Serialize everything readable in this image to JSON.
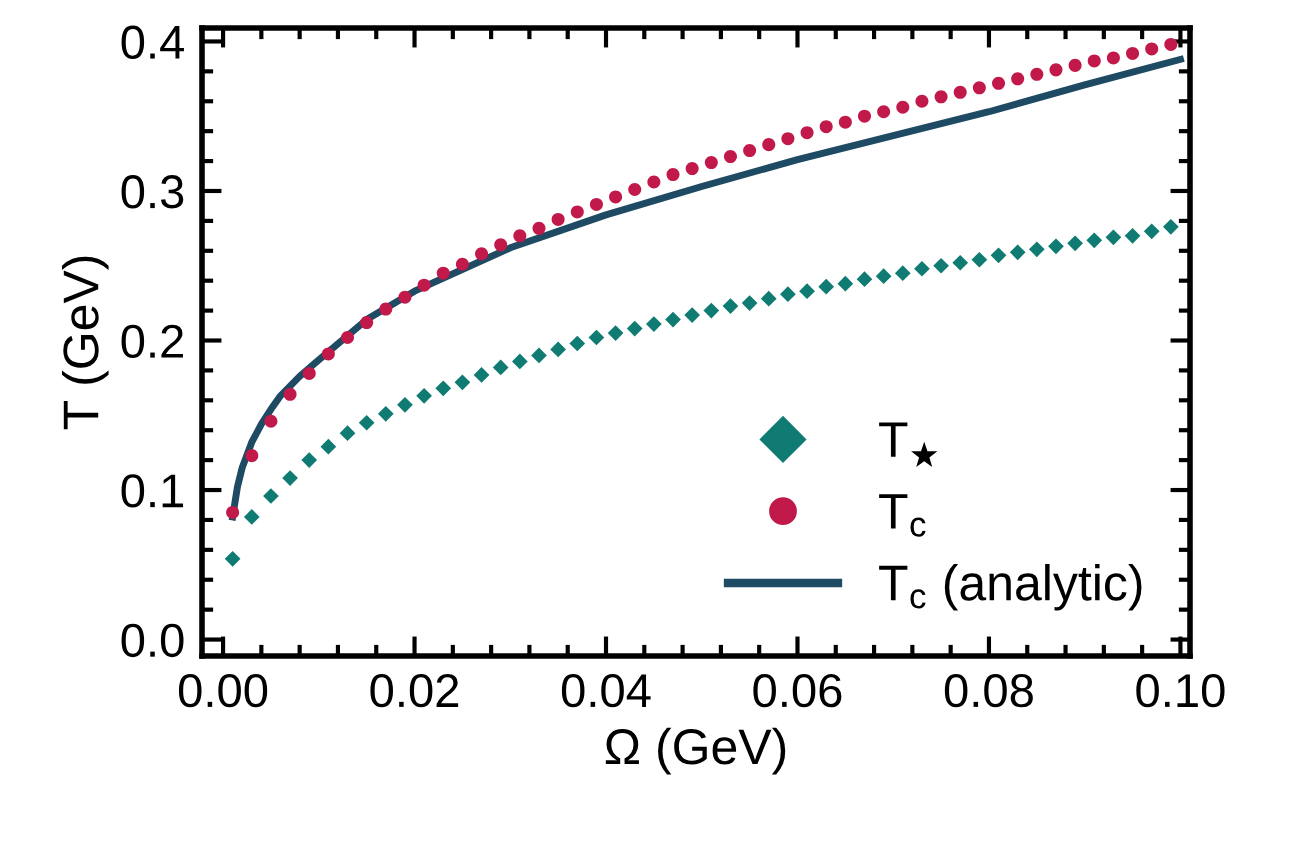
{
  "chart_data": {
    "type": "scatter",
    "xlabel": "Ω (GeV)",
    "ylabel": "T (GeV)",
    "xlim": [
      -0.0022,
      0.101
    ],
    "ylim": [
      -0.011,
      0.409
    ],
    "xticks": [
      {
        "value": 0,
        "label": "0.00"
      },
      {
        "value": 0.02,
        "label": "0.02"
      },
      {
        "value": 0.04,
        "label": "0.04"
      },
      {
        "value": 0.06,
        "label": "0.06"
      },
      {
        "value": 0.08,
        "label": "0.08"
      },
      {
        "value": 0.1,
        "label": "0.10"
      }
    ],
    "yticks": [
      {
        "value": 0,
        "label": "0.0"
      },
      0.1,
      0.2,
      0.3,
      0.4
    ],
    "grid": false,
    "legend": "bottom right",
    "x": [
      0.001,
      0.003,
      0.005,
      0.007,
      0.009,
      0.011,
      0.013,
      0.015,
      0.017,
      0.019,
      0.021,
      0.023,
      0.025,
      0.027,
      0.029,
      0.031,
      0.033,
      0.035,
      0.037,
      0.039,
      0.041,
      0.043,
      0.045,
      0.047,
      0.049,
      0.051,
      0.053,
      0.055,
      0.057,
      0.059,
      0.061,
      0.063,
      0.065,
      0.067,
      0.069,
      0.071,
      0.073,
      0.075,
      0.077,
      0.079,
      0.081,
      0.083,
      0.085,
      0.087,
      0.089,
      0.091,
      0.093,
      0.095,
      0.097,
      0.099
    ],
    "series": [
      {
        "name": "T$_{★}$",
        "marker": "diamond",
        "color": "#0f7b72",
        "values": [
          0.054,
          0.082,
          0.096,
          0.108,
          0.12,
          0.129,
          0.138,
          0.145,
          0.151,
          0.157,
          0.163,
          0.168,
          0.172,
          0.177,
          0.182,
          0.186,
          0.19,
          0.194,
          0.198,
          0.202,
          0.205,
          0.208,
          0.211,
          0.214,
          0.217,
          0.22,
          0.223,
          0.225,
          0.228,
          0.231,
          0.233,
          0.236,
          0.238,
          0.241,
          0.243,
          0.245,
          0.248,
          0.25,
          0.252,
          0.254,
          0.257,
          0.259,
          0.261,
          0.263,
          0.265,
          0.267,
          0.269,
          0.27,
          0.273,
          0.276
        ]
      },
      {
        "name": "T$_{c}$",
        "marker": "circle",
        "color": "#c0194a",
        "values": [
          0.085,
          0.123,
          0.146,
          0.164,
          0.178,
          0.191,
          0.202,
          0.212,
          0.221,
          0.229,
          0.237,
          0.245,
          0.251,
          0.258,
          0.264,
          0.27,
          0.275,
          0.281,
          0.286,
          0.291,
          0.296,
          0.301,
          0.306,
          0.311,
          0.315,
          0.319,
          0.323,
          0.327,
          0.331,
          0.335,
          0.339,
          0.343,
          0.346,
          0.35,
          0.353,
          0.356,
          0.36,
          0.363,
          0.366,
          0.369,
          0.372,
          0.375,
          0.378,
          0.381,
          0.384,
          0.387,
          0.389,
          0.392,
          0.395,
          0.398
        ]
      },
      {
        "name": "T$_{c}$ (analytic)",
        "type": "line",
        "line_style": "solid",
        "color": "#1e4a63",
        "x": [
          0.001,
          0.0015,
          0.002,
          0.003,
          0.004,
          0.005,
          0.006,
          0.008,
          0.01,
          0.015,
          0.02,
          0.03,
          0.04,
          0.05,
          0.06,
          0.07,
          0.08,
          0.09,
          0.1
        ],
        "values": [
          0.082,
          0.102,
          0.115,
          0.132,
          0.144,
          0.154,
          0.163,
          0.176,
          0.187,
          0.214,
          0.233,
          0.262,
          0.284,
          0.303,
          0.321,
          0.337,
          0.353,
          0.371,
          0.388
        ]
      }
    ]
  }
}
